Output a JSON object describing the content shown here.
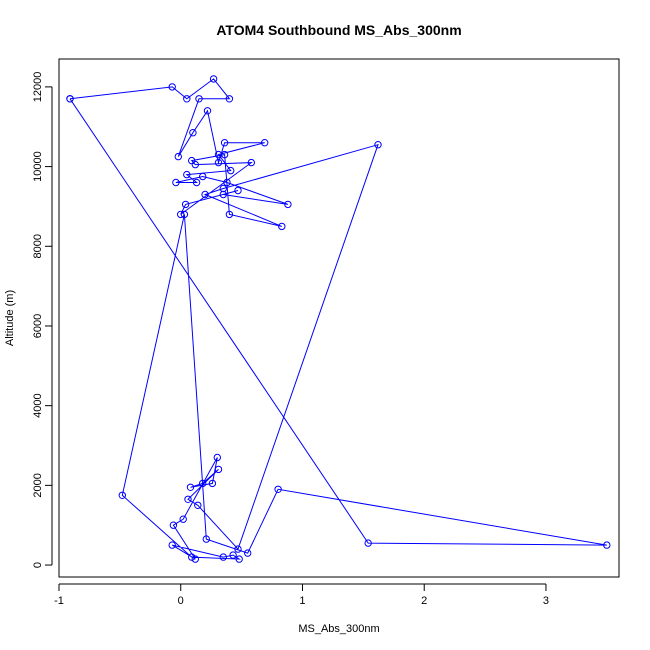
{
  "chart_data": {
    "type": "line",
    "title": "ATOM4 Southbound MS_Abs_300nm",
    "xlabel": "MS_Abs_300nm",
    "ylabel": "Altitude (m)",
    "xlim": [
      -1.0,
      3.6
    ],
    "ylim": [
      -300,
      12700
    ],
    "xticks": [
      -1,
      0,
      1,
      2,
      3
    ],
    "yticks": [
      0,
      2000,
      4000,
      6000,
      8000,
      10000,
      12000
    ],
    "grid": false,
    "legend": "none",
    "series": [
      {
        "color": "#0000ff",
        "x": [
          -0.91,
          -0.07,
          0.05,
          0.27,
          0.4,
          0.15,
          -0.02,
          0.1,
          0.22,
          0.31,
          0.36,
          0.69,
          0.31,
          0.41,
          0.05,
          0.13,
          -0.04,
          0.18,
          0.38,
          0.88,
          0.35,
          0.47,
          0.04,
          0.0,
          0.58,
          0.12,
          0.09,
          0.36,
          0.4,
          0.83,
          0.2,
          0.35,
          1.62,
          0.47,
          0.14,
          0.06,
          0.31,
          0.18,
          0.08,
          0.26,
          0.3,
          0.02,
          -0.06,
          0.12,
          -0.07,
          0.35,
          0.43,
          0.48,
          0.09,
          -0.48,
          0.03,
          0.21,
          0.55,
          0.8,
          3.5,
          1.54,
          -0.91
        ],
        "y": [
          11700,
          12000,
          11700,
          12200,
          11700,
          11700,
          10250,
          10850,
          11400,
          10100,
          10600,
          10600,
          10300,
          9900,
          9800,
          9600,
          9600,
          9750,
          9600,
          9050,
          9300,
          9400,
          9050,
          8800,
          10100,
          10050,
          10150,
          10300,
          8800,
          8500,
          9300,
          9450,
          10550,
          400,
          1500,
          1650,
          2400,
          2050,
          1950,
          2050,
          2700,
          1150,
          1000,
          150,
          500,
          200,
          250,
          150,
          200,
          1750,
          8800,
          650,
          300,
          1900,
          500,
          550,
          11700
        ]
      }
    ]
  }
}
